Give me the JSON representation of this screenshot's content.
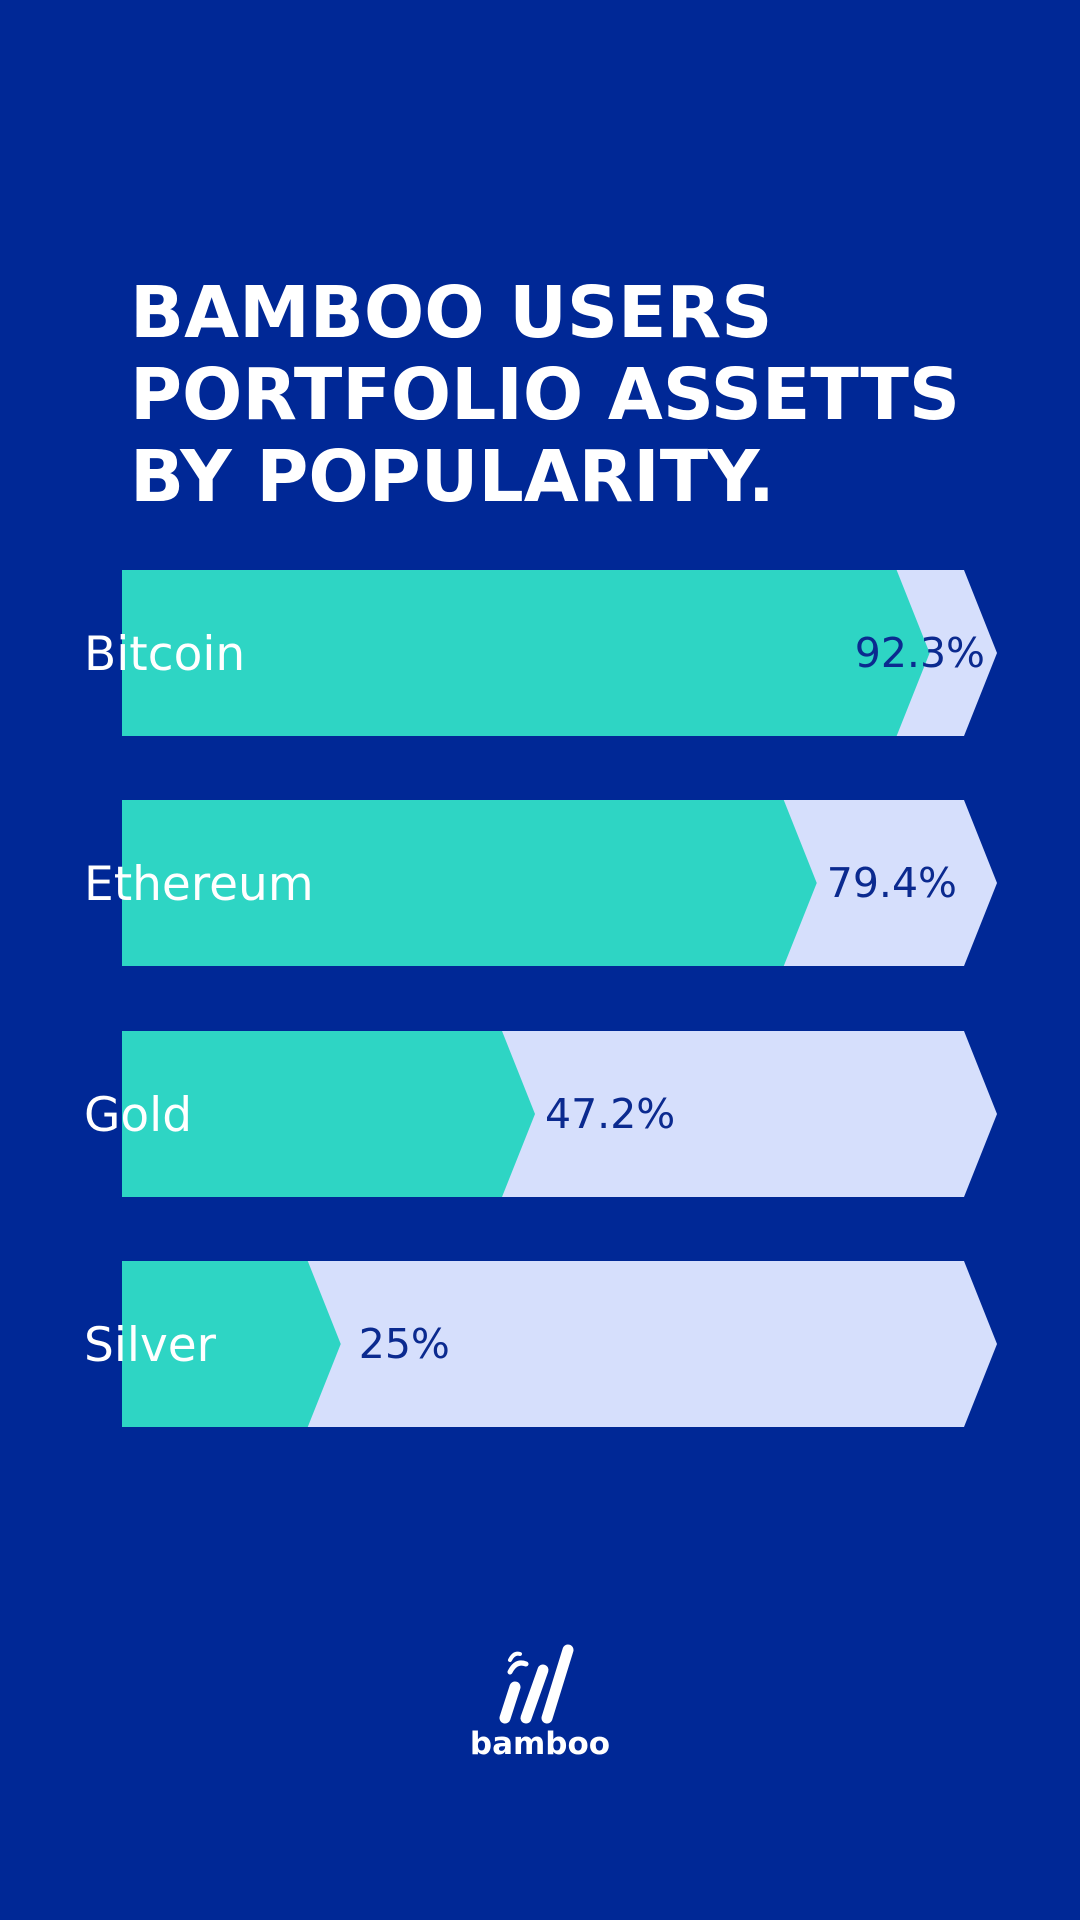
{
  "title_lines": [
    "BAMBOO USERS",
    "PORTFOLIO ASSETTS",
    "BY POPULARITY."
  ],
  "logo_text": "bamboo",
  "colors": {
    "background": "#002896",
    "bar_fill": "#2ED5C4",
    "bar_track": "#D6DFFC",
    "value_text": "#0B2A8F",
    "label_text": "#FFFFFF"
  },
  "chart_data": {
    "type": "bar",
    "orientation": "horizontal",
    "categories": [
      "Bitcoin",
      "Ethereum",
      "Gold",
      "Silver"
    ],
    "values": [
      92.3,
      79.4,
      47.2,
      25
    ],
    "value_labels": [
      "92.3%",
      "79.4%",
      "47.2%",
      "25%"
    ],
    "unit": "%",
    "xlim": [
      0,
      100
    ]
  }
}
